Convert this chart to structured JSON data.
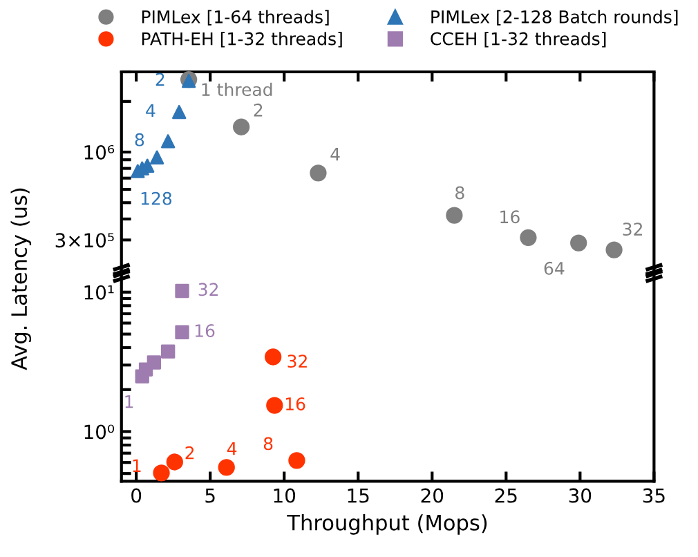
{
  "chart_data": [
    {
      "type": "scatter",
      "legend": "top",
      "ylabel": "Avg. Latency (us)",
      "log": "y",
      "tick_labels": "y",
      "xlim": [
        -1,
        35
      ],
      "xticks": [
        {
          "value": 0,
          "label": null
        },
        {
          "value": 5,
          "label": null
        },
        {
          "value": 10,
          "label": null
        },
        {
          "value": 15,
          "label": null
        },
        {
          "value": 20,
          "label": null
        },
        {
          "value": 25,
          "label": null
        },
        {
          "value": 30,
          "label": null
        },
        {
          "value": 35,
          "label": null
        }
      ],
      "ylim": [
        200000,
        3000000
      ],
      "yticks": [
        {
          "value": 300000,
          "label": "3×10⁵"
        },
        {
          "value": 400000,
          "label": null
        },
        {
          "value": 500000,
          "label": null
        },
        {
          "value": 600000,
          "label": null
        },
        {
          "value": 700000,
          "label": null
        },
        {
          "value": 800000,
          "label": null
        },
        {
          "value": 900000,
          "label": null
        },
        {
          "value": 1000000,
          "label": "10⁶"
        },
        {
          "value": 2000000,
          "label": null
        },
        {
          "value": 3000000,
          "label": null
        }
      ],
      "series": [
        {
          "name": "PIMLex [1-64 threads]",
          "color": "#7f7f7f",
          "marker": "circle",
          "x": [
            3.55,
            7.1,
            12.3,
            21.5,
            26.5,
            32.3,
            29.9
          ],
          "values": [
            2700000,
            1410000,
            750000,
            420000,
            310000,
            262000,
            288000
          ]
        },
        {
          "name": "PIMLex [2-128 Batch rounds]",
          "color": "#2e75b6",
          "marker": "triangle",
          "x": [
            3.55,
            2.9,
            2.15,
            1.4,
            0.75,
            0.4,
            0.1
          ],
          "values": [
            2650000,
            1730000,
            1160000,
            930000,
            830000,
            800000,
            770000
          ]
        }
      ],
      "annotations": [
        {
          "text": "1 thread",
          "x": 3.55,
          "y": 2700000
        },
        {
          "text": "2",
          "x": 7.1,
          "y": 1410000
        },
        {
          "text": "4",
          "x": 12.3,
          "y": 750000
        },
        {
          "text": "8",
          "x": 21.5,
          "y": 420000
        },
        {
          "text": "16",
          "x": 26.5,
          "y": 310000
        },
        {
          "text": "32",
          "x": 32.3,
          "y": 262000
        },
        {
          "text": "64",
          "x": 29.9,
          "y": 288000
        },
        {
          "text": "2",
          "x": 3.55,
          "y": 2650000
        },
        {
          "text": "4",
          "x": 2.9,
          "y": 1730000
        },
        {
          "text": "8",
          "x": 2.15,
          "y": 1160000
        },
        {
          "text": "128",
          "x": 0.1,
          "y": 770000
        }
      ]
    },
    {
      "type": "scatter",
      "legend": "top",
      "xlabel": "Throughput (Mops)",
      "log": "y",
      "xlim": [
        -1,
        35
      ],
      "xticks": [
        0,
        5,
        10,
        15,
        20,
        25,
        30,
        35
      ],
      "ylim": [
        0.44,
        13
      ],
      "yticks": [
        {
          "value": 0.5,
          "label": null
        },
        {
          "value": 0.6,
          "label": null
        },
        {
          "value": 0.7,
          "label": null
        },
        {
          "value": 0.8,
          "label": null
        },
        {
          "value": 0.9,
          "label": null
        },
        {
          "value": 1,
          "label": "10⁰"
        },
        {
          "value": 2,
          "label": null
        },
        {
          "value": 3,
          "label": null
        },
        {
          "value": 4,
          "label": null
        },
        {
          "value": 5,
          "label": null
        },
        {
          "value": 6,
          "label": null
        },
        {
          "value": 7,
          "label": null
        },
        {
          "value": 8,
          "label": null
        },
        {
          "value": 9,
          "label": null
        },
        {
          "value": 10,
          "label": "10¹"
        }
      ],
      "series": [
        {
          "name": "PATH-EH [1-32 threads]",
          "color": "#ff3300",
          "marker": "circle",
          "x": [
            1.7,
            2.6,
            6.1,
            10.85,
            9.35,
            9.25
          ],
          "values": [
            0.505,
            0.605,
            0.553,
            0.62,
            1.54,
            3.43
          ]
        },
        {
          "name": "CCEH [1-32 threads]",
          "color": "#9e7cb0",
          "marker": "square",
          "x": [
            0.4,
            0.65,
            1.2,
            2.15,
            3.1,
            3.1
          ],
          "values": [
            2.49,
            2.79,
            3.13,
            3.75,
            5.16,
            10.2
          ]
        }
      ],
      "annotations": [
        {
          "text": "1",
          "x": 1.7,
          "y": 0.505
        },
        {
          "text": "2",
          "x": 2.6,
          "y": 0.605
        },
        {
          "text": "4",
          "x": 6.1,
          "y": 0.553
        },
        {
          "text": "8",
          "x": 10.85,
          "y": 0.62
        },
        {
          "text": "16",
          "x": 9.35,
          "y": 1.54
        },
        {
          "text": "32",
          "x": 9.25,
          "y": 3.43
        },
        {
          "text": "1",
          "x": 0.4,
          "y": 2.49
        },
        {
          "text": "16",
          "x": 3.1,
          "y": 5.16
        },
        {
          "text": "32",
          "x": 3.1,
          "y": 10.2
        }
      ]
    }
  ]
}
